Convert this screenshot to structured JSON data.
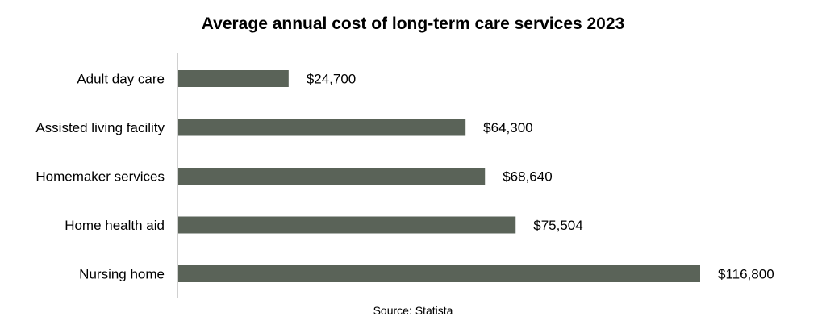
{
  "chart_data": {
    "type": "bar",
    "orientation": "horizontal",
    "title": "Average annual cost of long-term care services 2023",
    "categories": [
      "Adult day care",
      "Assisted living facility",
      "Homemaker services",
      "Home health aid",
      "Nursing home"
    ],
    "values": [
      24700,
      64300,
      68640,
      75504,
      116800
    ],
    "value_labels": [
      "$24,700",
      "$64,300",
      "$68,640",
      "$75,504",
      "$116,800"
    ],
    "xlabel": "",
    "ylabel": "",
    "xlim": [
      0,
      116800
    ],
    "grid": false,
    "legend": "none",
    "bar_color": "#5a6358",
    "axis_color": "#d0d0d0"
  },
  "source": "Source: Statista"
}
